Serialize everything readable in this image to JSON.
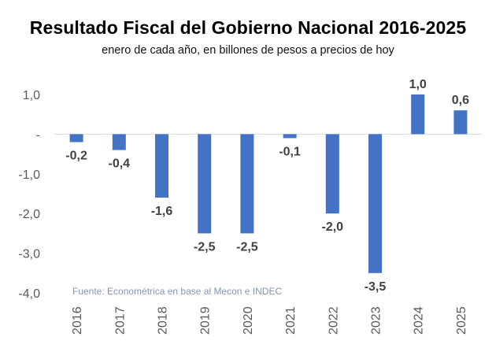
{
  "title": "Resultado Fiscal del Gobierno Nacional 2016-2025",
  "subtitle": "enero de cada año, en billones de pesos a precios de hoy",
  "source": "Fuente: Econométrica en base al Mecon e INDEC",
  "colors": {
    "bar": "#4472c4",
    "axis": "#d9d9d9"
  },
  "chart_data": {
    "type": "bar",
    "title": "Resultado Fiscal del Gobierno Nacional 2016-2025",
    "subtitle": "enero de cada año, en billones de pesos a precios de hoy",
    "xlabel": "",
    "ylabel": "",
    "ylim": [
      -4.0,
      1.0
    ],
    "yticks": [
      1.0,
      0,
      -1.0,
      -2.0,
      -3.0,
      -4.0
    ],
    "ytick_labels": [
      "1,0",
      "-",
      "-1,0",
      "-2,0",
      "-3,0",
      "-4,0"
    ],
    "categories": [
      "2016",
      "2017",
      "2018",
      "2019",
      "2020",
      "2021",
      "2022",
      "2023",
      "2024",
      "2025"
    ],
    "values": [
      -0.2,
      -0.4,
      -1.6,
      -2.5,
      -2.5,
      -0.1,
      -2.0,
      -3.5,
      1.0,
      0.6
    ],
    "value_labels": [
      "-0,2",
      "-0,4",
      "-1,6",
      "-2,5",
      "-2,5",
      "-0,1",
      "-2,0",
      "-3,5",
      "1,0",
      "0,6"
    ],
    "grid": false,
    "legend": "none"
  }
}
